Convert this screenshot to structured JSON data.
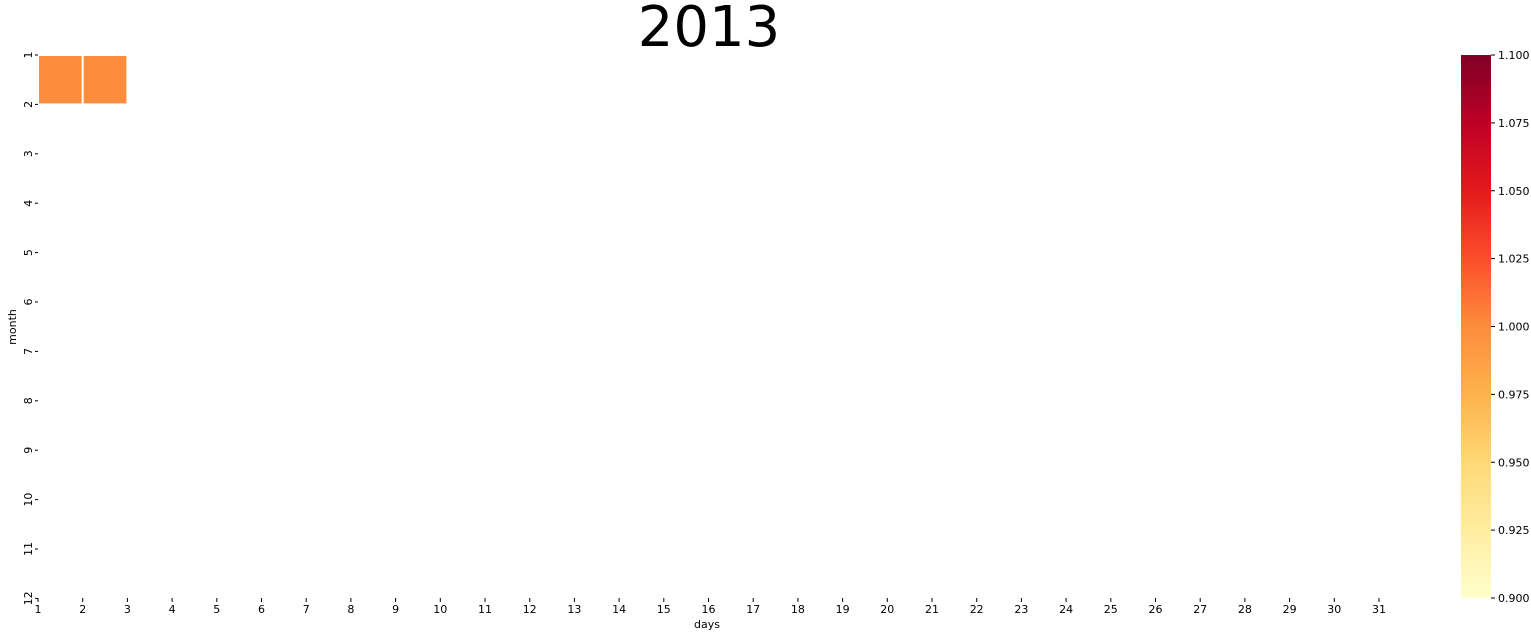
{
  "chart_data": {
    "type": "heatmap",
    "title": "2013",
    "xlabel": "days",
    "ylabel": "month",
    "x_ticks": [
      "1",
      "2",
      "3",
      "4",
      "5",
      "6",
      "7",
      "8",
      "9",
      "10",
      "11",
      "12",
      "13",
      "14",
      "15",
      "16",
      "17",
      "18",
      "19",
      "20",
      "21",
      "22",
      "23",
      "24",
      "25",
      "26",
      "27",
      "28",
      "29",
      "30",
      "31"
    ],
    "y_ticks": [
      "1",
      "2",
      "3",
      "4",
      "5",
      "6",
      "7",
      "8",
      "9",
      "10",
      "11",
      "12"
    ],
    "cells": [
      {
        "month": 1,
        "day": 1,
        "value": 1.0
      },
      {
        "month": 1,
        "day": 2,
        "value": 1.0
      }
    ],
    "colorbar": {
      "vmin": 0.9,
      "vmax": 1.1,
      "ticks": [
        "0.900",
        "0.925",
        "0.950",
        "0.975",
        "1.000",
        "1.025",
        "1.050",
        "1.075",
        "1.100"
      ],
      "colormap": "YlOrRd",
      "stops": [
        "#ffffcc",
        "#ffeda0",
        "#fed976",
        "#feb24c",
        "#fd8d3c",
        "#fc4e2a",
        "#e31a1c",
        "#bd0026",
        "#800026"
      ]
    },
    "grid": false
  }
}
